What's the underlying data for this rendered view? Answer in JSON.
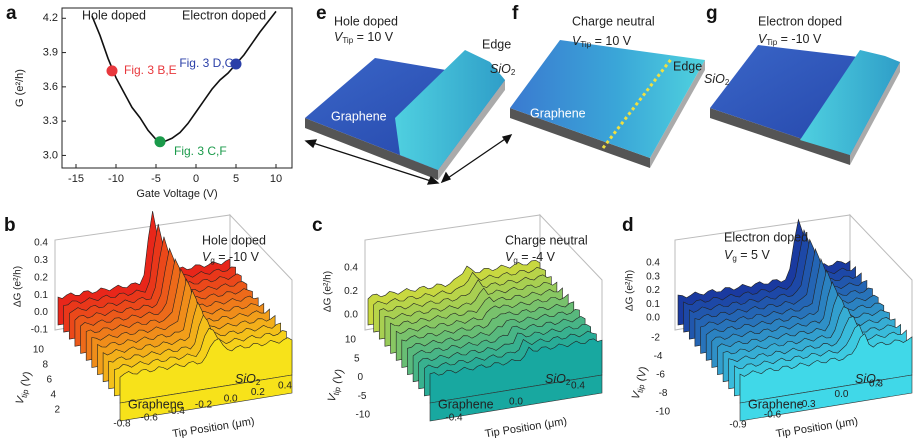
{
  "chart_data": {
    "type": "line",
    "panel": "a",
    "x": [
      -13,
      -12,
      -11,
      -10,
      -9,
      -8,
      -7,
      -6,
      -5,
      -4,
      -3,
      -2,
      -1,
      0,
      1,
      2,
      3,
      4,
      5,
      6,
      7,
      8,
      9,
      10
    ],
    "series": [
      {
        "color": "#111111",
        "values": [
          4.22,
          4.05,
          3.85,
          3.68,
          3.55,
          3.42,
          3.33,
          3.22,
          3.14,
          3.12,
          3.15,
          3.2,
          3.28,
          3.38,
          3.48,
          3.58,
          3.66,
          3.72,
          3.8,
          3.88,
          3.98,
          4.08,
          4.17,
          4.26
        ]
      }
    ],
    "xlabel": "Gate Voltage (V)",
    "ylabel": "G (e²/h)",
    "xlim": [
      -16.75,
      12
    ],
    "xticks": [
      -15,
      -10,
      -5,
      0,
      5,
      10
    ],
    "ylim": [
      2.89,
      4.29
    ],
    "yticks": [
      {
        "value": 3,
        "label": "3.0"
      },
      3.3,
      3.6,
      3.9,
      4.2
    ],
    "annotations": [
      "Hole doped",
      "Electron doped"
    ],
    "markers": [
      {
        "label": "Fig. 3 B,E",
        "x": -10.5,
        "y": 3.74,
        "color": "#e8383d"
      },
      {
        "label": "Fig. 3 C,F",
        "x": -4.5,
        "y": 3.12,
        "color": "#1a9a4a"
      },
      {
        "label": "Fig. 3 D,G",
        "x": 5,
        "y": 3.8,
        "color": "#2a3fa8"
      }
    ]
  },
  "panels": {
    "e": {
      "letter": "e",
      "title": "Hole doped",
      "vtip": [
        "V",
        "Tip",
        " = 10 V"
      ],
      "edge": "Edge",
      "sio2": [
        "SiO",
        "2"
      ],
      "graphene": "Graphene"
    },
    "f": {
      "letter": "f",
      "title": "Charge neutral",
      "vtip": [
        "V",
        "Tip",
        " = 10 V"
      ],
      "edge": "Edge",
      "sio2": [
        "SiO",
        "2"
      ],
      "graphene": "Graphene"
    },
    "g": {
      "letter": "g",
      "title": "Electron doped",
      "vtip": [
        "V",
        "Tip",
        " = -10 V"
      ]
    },
    "b": {
      "letter": "b",
      "title": "Hole doped",
      "vg": [
        "V",
        "g",
        " = -10 V"
      ],
      "zlabel": "ΔG (e²/h)",
      "ylabel": [
        "V",
        "tip",
        " (V)"
      ],
      "xlabel": "Tip Position (μm)",
      "graphene": "Graphene",
      "sio2": [
        "SiO",
        "2"
      ],
      "zticks": [
        "0.4",
        "0.3",
        "0.2",
        "0.1",
        "0.0",
        "-0.1"
      ],
      "yticks": [
        "10",
        "8",
        "6",
        "4",
        "2"
      ],
      "xticks": [
        "-0.8",
        "-0.6",
        "-0.4",
        "-0.2",
        "0.0",
        "0.2",
        "0.4"
      ]
    },
    "c": {
      "letter": "c",
      "title": "Charge neutral",
      "vg": [
        "V",
        "g",
        " = -4 V"
      ],
      "zlabel": "ΔG (e²/h)",
      "ylabel": [
        "V",
        "tip",
        " (V)"
      ],
      "xlabel": "Tip Position (μm)",
      "graphene": "Graphene",
      "sio2": [
        "SiO",
        "2"
      ],
      "zticks": [
        "0.4",
        "0.2",
        "0.0"
      ],
      "yticks": [
        "10",
        "5",
        "0",
        "-5",
        "-10"
      ],
      "xticks": [
        "-0.4",
        "0.0",
        "0.4"
      ]
    },
    "d": {
      "letter": "d",
      "title": "Electron doped",
      "vg": [
        "V",
        "g",
        " = 5 V"
      ],
      "zlabel": "ΔG (e²/h)",
      "ylabel": [
        "V",
        "tip",
        " (V)"
      ],
      "xlabel": "Tip Position (μm)",
      "graphene": "Graphene",
      "sio2": [
        "SiO",
        "2"
      ],
      "zticks": [
        "0.4",
        "0.3",
        "0.2",
        "0.1",
        "0.0"
      ],
      "yticks": [
        "-2",
        "-4",
        "-6",
        "-8",
        "-10"
      ],
      "xticks": [
        "-0.9",
        "-0.6",
        "-0.3",
        "0.0",
        "0.3"
      ]
    }
  }
}
